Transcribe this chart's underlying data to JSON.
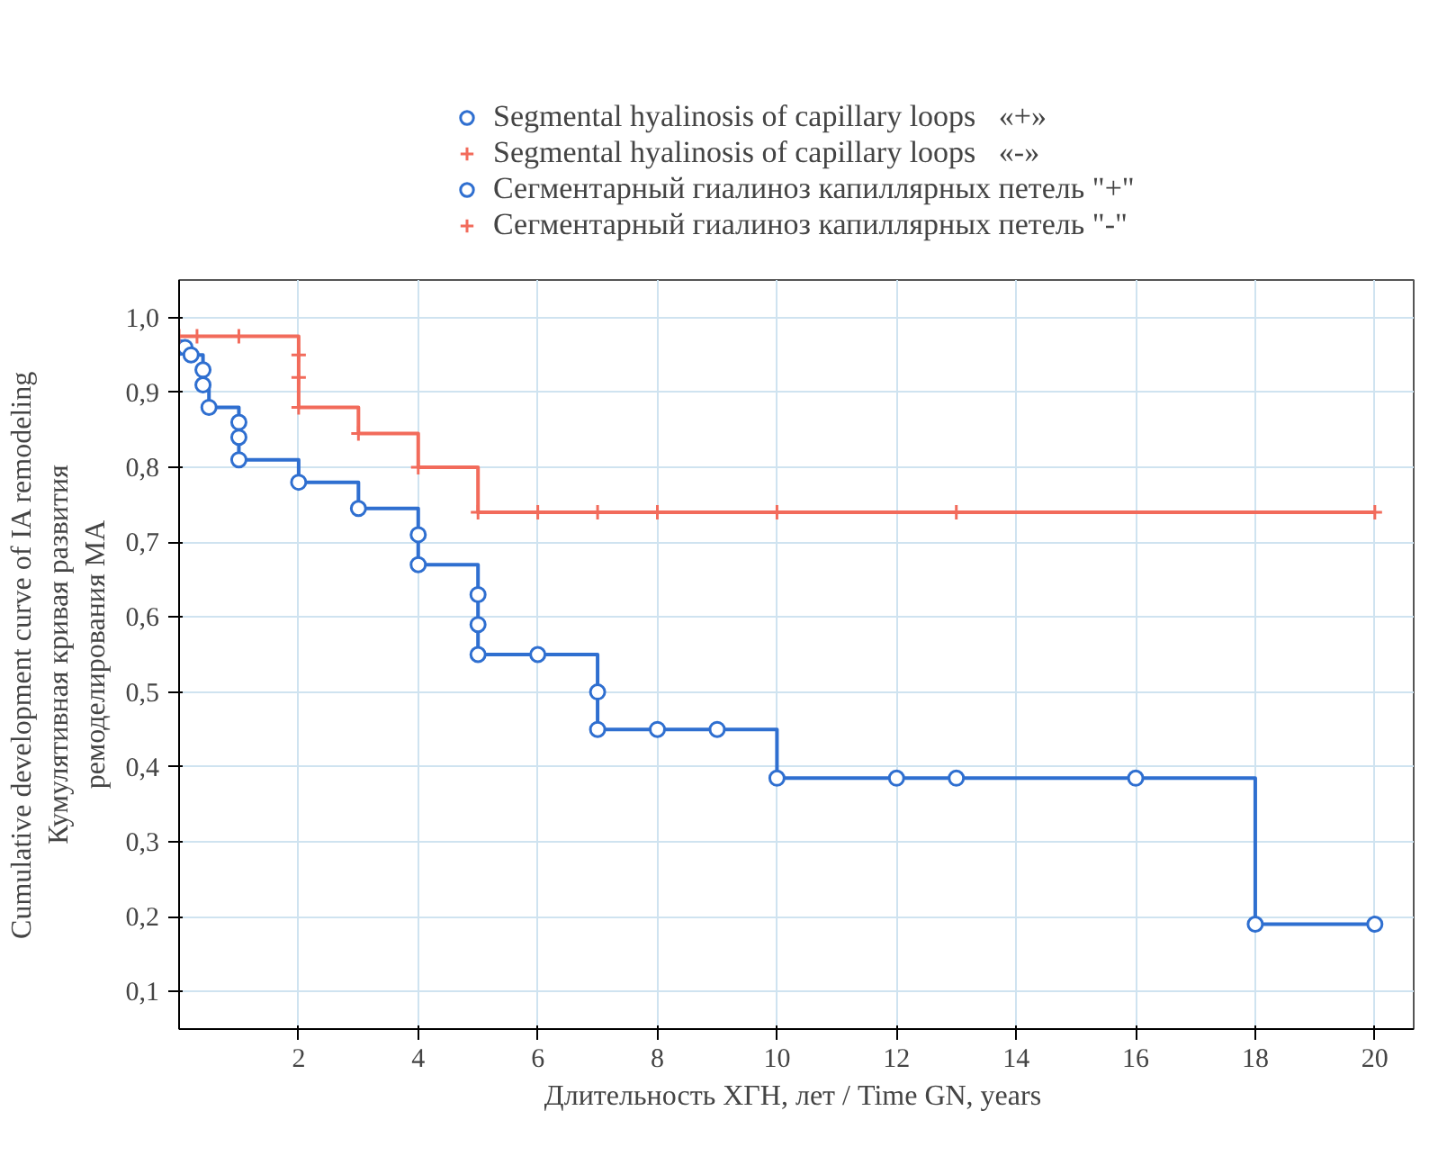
{
  "chart_data": {
    "type": "step",
    "xlabel": "Длительность ХГН, лет  / Time GN, years",
    "ylabel": "Cumulative development curve of IA remodeling\nКумулятивная кривая развития\nремоделирования МА",
    "xlim": [
      0,
      20.65
    ],
    "ylim": [
      0.05,
      1.05
    ],
    "xticks": [
      2,
      4,
      6,
      8,
      10,
      12,
      14,
      16,
      18,
      20
    ],
    "yticks": [
      {
        "value": 0.1,
        "label": "0,1"
      },
      {
        "value": 0.2,
        "label": "0,2"
      },
      {
        "value": 0.3,
        "label": "0,3"
      },
      {
        "value": 0.4,
        "label": "0,4"
      },
      {
        "value": 0.5,
        "label": "0,5"
      },
      {
        "value": 0.6,
        "label": "0,6"
      },
      {
        "value": 0.7,
        "label": "0,7"
      },
      {
        "value": 0.8,
        "label": "0,8"
      },
      {
        "value": 0.9,
        "label": "0,9"
      },
      {
        "value": 1.0,
        "label": "1,0"
      }
    ],
    "grid": true,
    "legend": "top",
    "annotations": [
      "Сегментарный гиалиноз капиллярных петель \"+\"",
      "Сегментарный гиалиноз капиллярных петель \"-\""
    ],
    "series": [
      {
        "name": "Segmental hyalinosis of capillary loops   «+»",
        "color": "#2f6fd0",
        "marker": "circle",
        "x": [
          0,
          0.1,
          0.2,
          0.4,
          0.4,
          0.5,
          1,
          1,
          1,
          2,
          3,
          4,
          4,
          5,
          5,
          5,
          6,
          7,
          7,
          8,
          9,
          10,
          12,
          13,
          16,
          18,
          20
        ],
        "values": [
          0.96,
          0.96,
          0.95,
          0.93,
          0.91,
          0.88,
          0.86,
          0.84,
          0.81,
          0.78,
          0.745,
          0.71,
          0.67,
          0.63,
          0.59,
          0.55,
          0.55,
          0.5,
          0.45,
          0.45,
          0.45,
          0.385,
          0.385,
          0.385,
          0.385,
          0.19,
          0.19
        ]
      },
      {
        "name": "Segmental hyalinosis of capillary loops   «-»",
        "color": "#f26b5b",
        "marker": "cross",
        "x": [
          0,
          0.3,
          1,
          2,
          2,
          2,
          3,
          4,
          5,
          6,
          7,
          8,
          10,
          13,
          20
        ],
        "values": [
          0.975,
          0.975,
          0.975,
          0.95,
          0.92,
          0.88,
          0.845,
          0.8,
          0.74,
          0.74,
          0.74,
          0.74,
          0.74,
          0.74,
          0.74
        ]
      }
    ]
  }
}
